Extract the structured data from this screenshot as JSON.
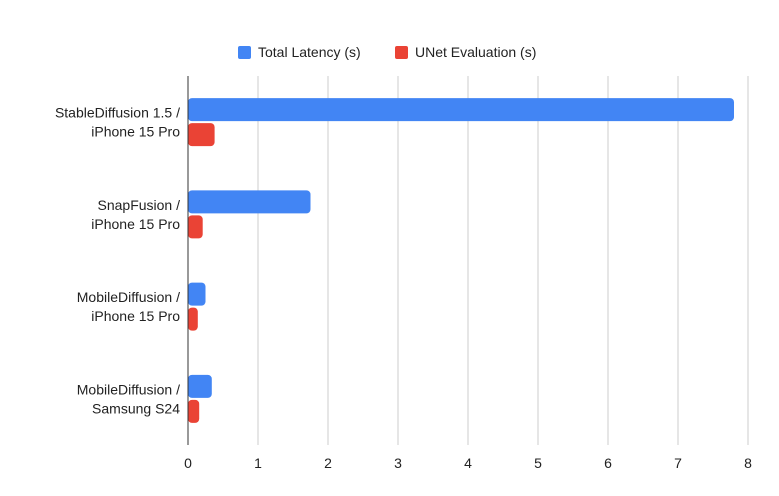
{
  "chart_data": {
    "type": "bar",
    "orientation": "horizontal",
    "categories": [
      [
        "StableDiffusion 1.5 /",
        "iPhone 15 Pro"
      ],
      [
        "SnapFusion /",
        "iPhone 15 Pro"
      ],
      [
        "MobileDiffusion /",
        "iPhone 15 Pro"
      ],
      [
        "MobileDiffusion /",
        "Samsung S24"
      ]
    ],
    "series": [
      {
        "name": "Total Latency (s)",
        "color": "#4285f4",
        "values": [
          7.8,
          1.75,
          0.25,
          0.34
        ]
      },
      {
        "name": "UNet Evaluation (s)",
        "color": "#ea4335",
        "values": [
          0.38,
          0.21,
          0.14,
          0.16
        ]
      }
    ],
    "xlim": [
      0,
      8
    ],
    "xticks": [
      "0",
      "1",
      "2",
      "3",
      "4",
      "5",
      "6",
      "7",
      "8"
    ],
    "grid": true,
    "legend_position": "top-center",
    "title": "",
    "xlabel": "",
    "ylabel": ""
  }
}
